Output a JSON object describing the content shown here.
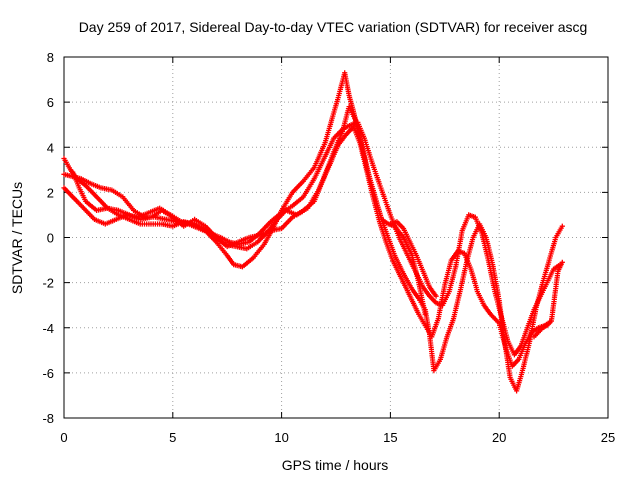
{
  "chart_data": {
    "type": "scatter",
    "title": "Day 259 of 2017, Sidereal Day-to-day VTEC variation (SDTVAR) for receiver ascg",
    "xlabel": "GPS time / hours",
    "ylabel": "SDTVAR / TECUs",
    "xlim": [
      0,
      25
    ],
    "ylim": [
      -8,
      8
    ],
    "xticks": [
      "0",
      "5",
      "10",
      "15",
      "20",
      "25"
    ],
    "yticks": [
      "-8",
      "-6",
      "-4",
      "-2",
      "0",
      "2",
      "4",
      "6",
      "8"
    ],
    "grid": true,
    "marker": "+",
    "color": "#ff0000",
    "series": [
      {
        "x": [
          0.0,
          0.3,
          0.6,
          1.0,
          1.5,
          2.0,
          2.5,
          3.0,
          3.5,
          4.0,
          4.5,
          5.0,
          5.5,
          6.0,
          6.5,
          7.0,
          7.5,
          7.8,
          8.2,
          8.7,
          9.2,
          9.6,
          10.0,
          10.5,
          11.0,
          11.5,
          12.0,
          12.3,
          12.6,
          12.9,
          13.1,
          13.3,
          13.5,
          13.8,
          14.0,
          14.3,
          14.6,
          14.9,
          15.2,
          15.6,
          16.0,
          16.3,
          16.6,
          16.8,
          17.0,
          17.3,
          17.6,
          17.9,
          18.2,
          18.5,
          18.8,
          19.1,
          19.4,
          19.7,
          20.0,
          20.2,
          20.5,
          20.8,
          21.1,
          21.4,
          21.7,
          22.0,
          22.3,
          22.6,
          22.9
        ],
        "y": [
          3.5,
          3.0,
          2.6,
          2.3,
          1.8,
          1.3,
          1.0,
          0.8,
          0.6,
          0.6,
          0.6,
          0.5,
          0.7,
          0.6,
          0.3,
          -0.2,
          -0.8,
          -1.2,
          -1.3,
          -0.9,
          -0.3,
          0.4,
          1.2,
          2.0,
          2.5,
          3.1,
          4.2,
          5.2,
          6.2,
          7.3,
          6.3,
          5.6,
          4.8,
          3.6,
          2.8,
          1.8,
          0.8,
          0.0,
          -0.8,
          -1.6,
          -2.3,
          -2.7,
          -3.2,
          -4.3,
          -5.9,
          -5.4,
          -4.4,
          -3.6,
          -2.4,
          -1.1,
          0.0,
          0.6,
          0.0,
          -1.2,
          -2.8,
          -4.3,
          -6.2,
          -6.8,
          -5.8,
          -4.6,
          -3.1,
          -2.0,
          -1.0,
          0.0,
          0.5
        ]
      },
      {
        "x": [
          0.0,
          0.4,
          0.8,
          1.2,
          1.7,
          2.2,
          2.7,
          3.2,
          3.7,
          4.2,
          4.7,
          5.2,
          5.7,
          6.2,
          6.7,
          7.2,
          7.6,
          8.0,
          8.5,
          9.0,
          9.5,
          10.0,
          10.5,
          11.0,
          11.5,
          12.0,
          12.4,
          12.8,
          13.2,
          13.5,
          13.8,
          14.2,
          14.6,
          15.0,
          15.4,
          15.8,
          16.2,
          16.5,
          16.8,
          17.1,
          17.4,
          17.7,
          18.0,
          18.3,
          18.6,
          18.9,
          19.2,
          19.5,
          19.8,
          20.1,
          20.4,
          20.7,
          21.0,
          21.3,
          21.6,
          21.9,
          22.2,
          22.5,
          22.8
        ],
        "y": [
          2.8,
          2.7,
          2.6,
          2.4,
          2.2,
          2.1,
          1.8,
          1.2,
          0.9,
          0.9,
          0.8,
          0.7,
          0.6,
          0.4,
          0.2,
          0.0,
          -0.2,
          -0.3,
          -0.2,
          0.2,
          0.7,
          1.1,
          1.4,
          1.8,
          2.6,
          3.6,
          4.4,
          4.8,
          5.0,
          5.1,
          4.4,
          3.2,
          2.1,
          1.0,
          0.0,
          -0.8,
          -1.6,
          -2.2,
          -2.6,
          -2.9,
          -3.0,
          -2.4,
          -1.3,
          0.3,
          1.0,
          0.9,
          0.2,
          -1.0,
          -2.4,
          -3.5,
          -4.6,
          -5.2,
          -4.8,
          -4.0,
          -3.2,
          -2.6,
          -2.0,
          -1.4,
          -1.2
        ]
      },
      {
        "x": [
          0.0,
          0.3,
          0.6,
          1.0,
          1.4,
          1.9,
          2.4,
          2.9,
          3.4,
          3.9,
          4.4,
          4.9,
          5.4,
          5.9,
          6.4,
          6.9,
          7.4,
          7.9,
          8.4,
          8.9,
          9.4,
          9.8,
          10.2,
          10.7,
          11.2,
          11.7,
          12.2,
          12.6,
          13.0,
          13.3,
          13.6,
          13.9,
          14.2,
          14.5,
          14.8,
          15.1,
          15.5,
          15.9,
          16.3,
          16.6,
          16.9,
          17.2,
          17.5,
          17.8,
          18.1,
          18.4,
          18.7,
          19.0,
          19.3,
          19.6,
          19.8,
          20.0,
          20.3,
          20.6,
          20.9,
          21.2,
          21.5,
          21.8,
          22.1,
          22.4,
          22.7,
          22.9
        ],
        "y": [
          2.2,
          1.9,
          1.6,
          1.2,
          0.8,
          0.6,
          0.8,
          1.0,
          0.9,
          1.1,
          1.3,
          1.0,
          0.7,
          0.6,
          0.4,
          0.1,
          -0.3,
          -0.4,
          -0.5,
          -0.2,
          0.3,
          0.8,
          1.2,
          1.0,
          1.3,
          2.1,
          3.2,
          4.1,
          4.6,
          4.9,
          4.2,
          3.0,
          1.8,
          0.7,
          -0.2,
          -1.0,
          -1.8,
          -2.6,
          -3.4,
          -3.9,
          -4.4,
          -3.6,
          -2.1,
          -1.0,
          -0.6,
          -0.7,
          -1.4,
          -2.4,
          -3.0,
          -3.4,
          -3.6,
          -3.8,
          -4.9,
          -5.7,
          -5.4,
          -4.7,
          -4.2,
          -4.0,
          -3.9,
          -3.7,
          -1.5,
          -1.1
        ]
      },
      {
        "x": [
          0.4,
          0.7,
          1.0,
          1.5,
          2.0,
          2.5,
          3.0,
          3.5,
          4.0,
          4.5,
          5.0,
          5.5,
          6.0,
          6.5,
          7.0,
          7.5,
          8.0,
          8.5,
          9.0,
          9.5,
          10.0,
          10.5,
          11.0,
          11.5,
          12.0,
          12.4,
          12.8,
          13.1,
          13.4,
          13.7,
          14.0,
          14.3,
          14.6,
          14.9,
          15.2,
          15.6,
          16.0,
          16.3,
          16.6
        ],
        "y": [
          2.9,
          2.2,
          1.6,
          1.2,
          1.3,
          1.2,
          1.0,
          0.8,
          0.9,
          1.2,
          0.9,
          0.5,
          0.8,
          0.5,
          0.0,
          -0.4,
          -0.2,
          0.0,
          0.1,
          0.3,
          0.4,
          0.9,
          1.2,
          1.6,
          2.8,
          3.8,
          4.7,
          5.8,
          5.2,
          4.0,
          2.8,
          1.7,
          0.8,
          0.6,
          0.5,
          0.0,
          -0.8,
          -2.0,
          -3.4
        ]
      },
      {
        "x": [
          15.0,
          15.3,
          15.6,
          15.9,
          16.2,
          16.5,
          16.8,
          17.1
        ],
        "y": [
          0.6,
          0.7,
          0.4,
          -0.2,
          -0.8,
          -1.5,
          -2.2,
          -2.6
        ]
      },
      {
        "x": [
          21.6,
          21.8,
          22.0,
          22.2,
          22.4
        ],
        "y": [
          -4.4,
          -4.2,
          -4.0,
          -3.9,
          -3.7
        ]
      }
    ]
  }
}
